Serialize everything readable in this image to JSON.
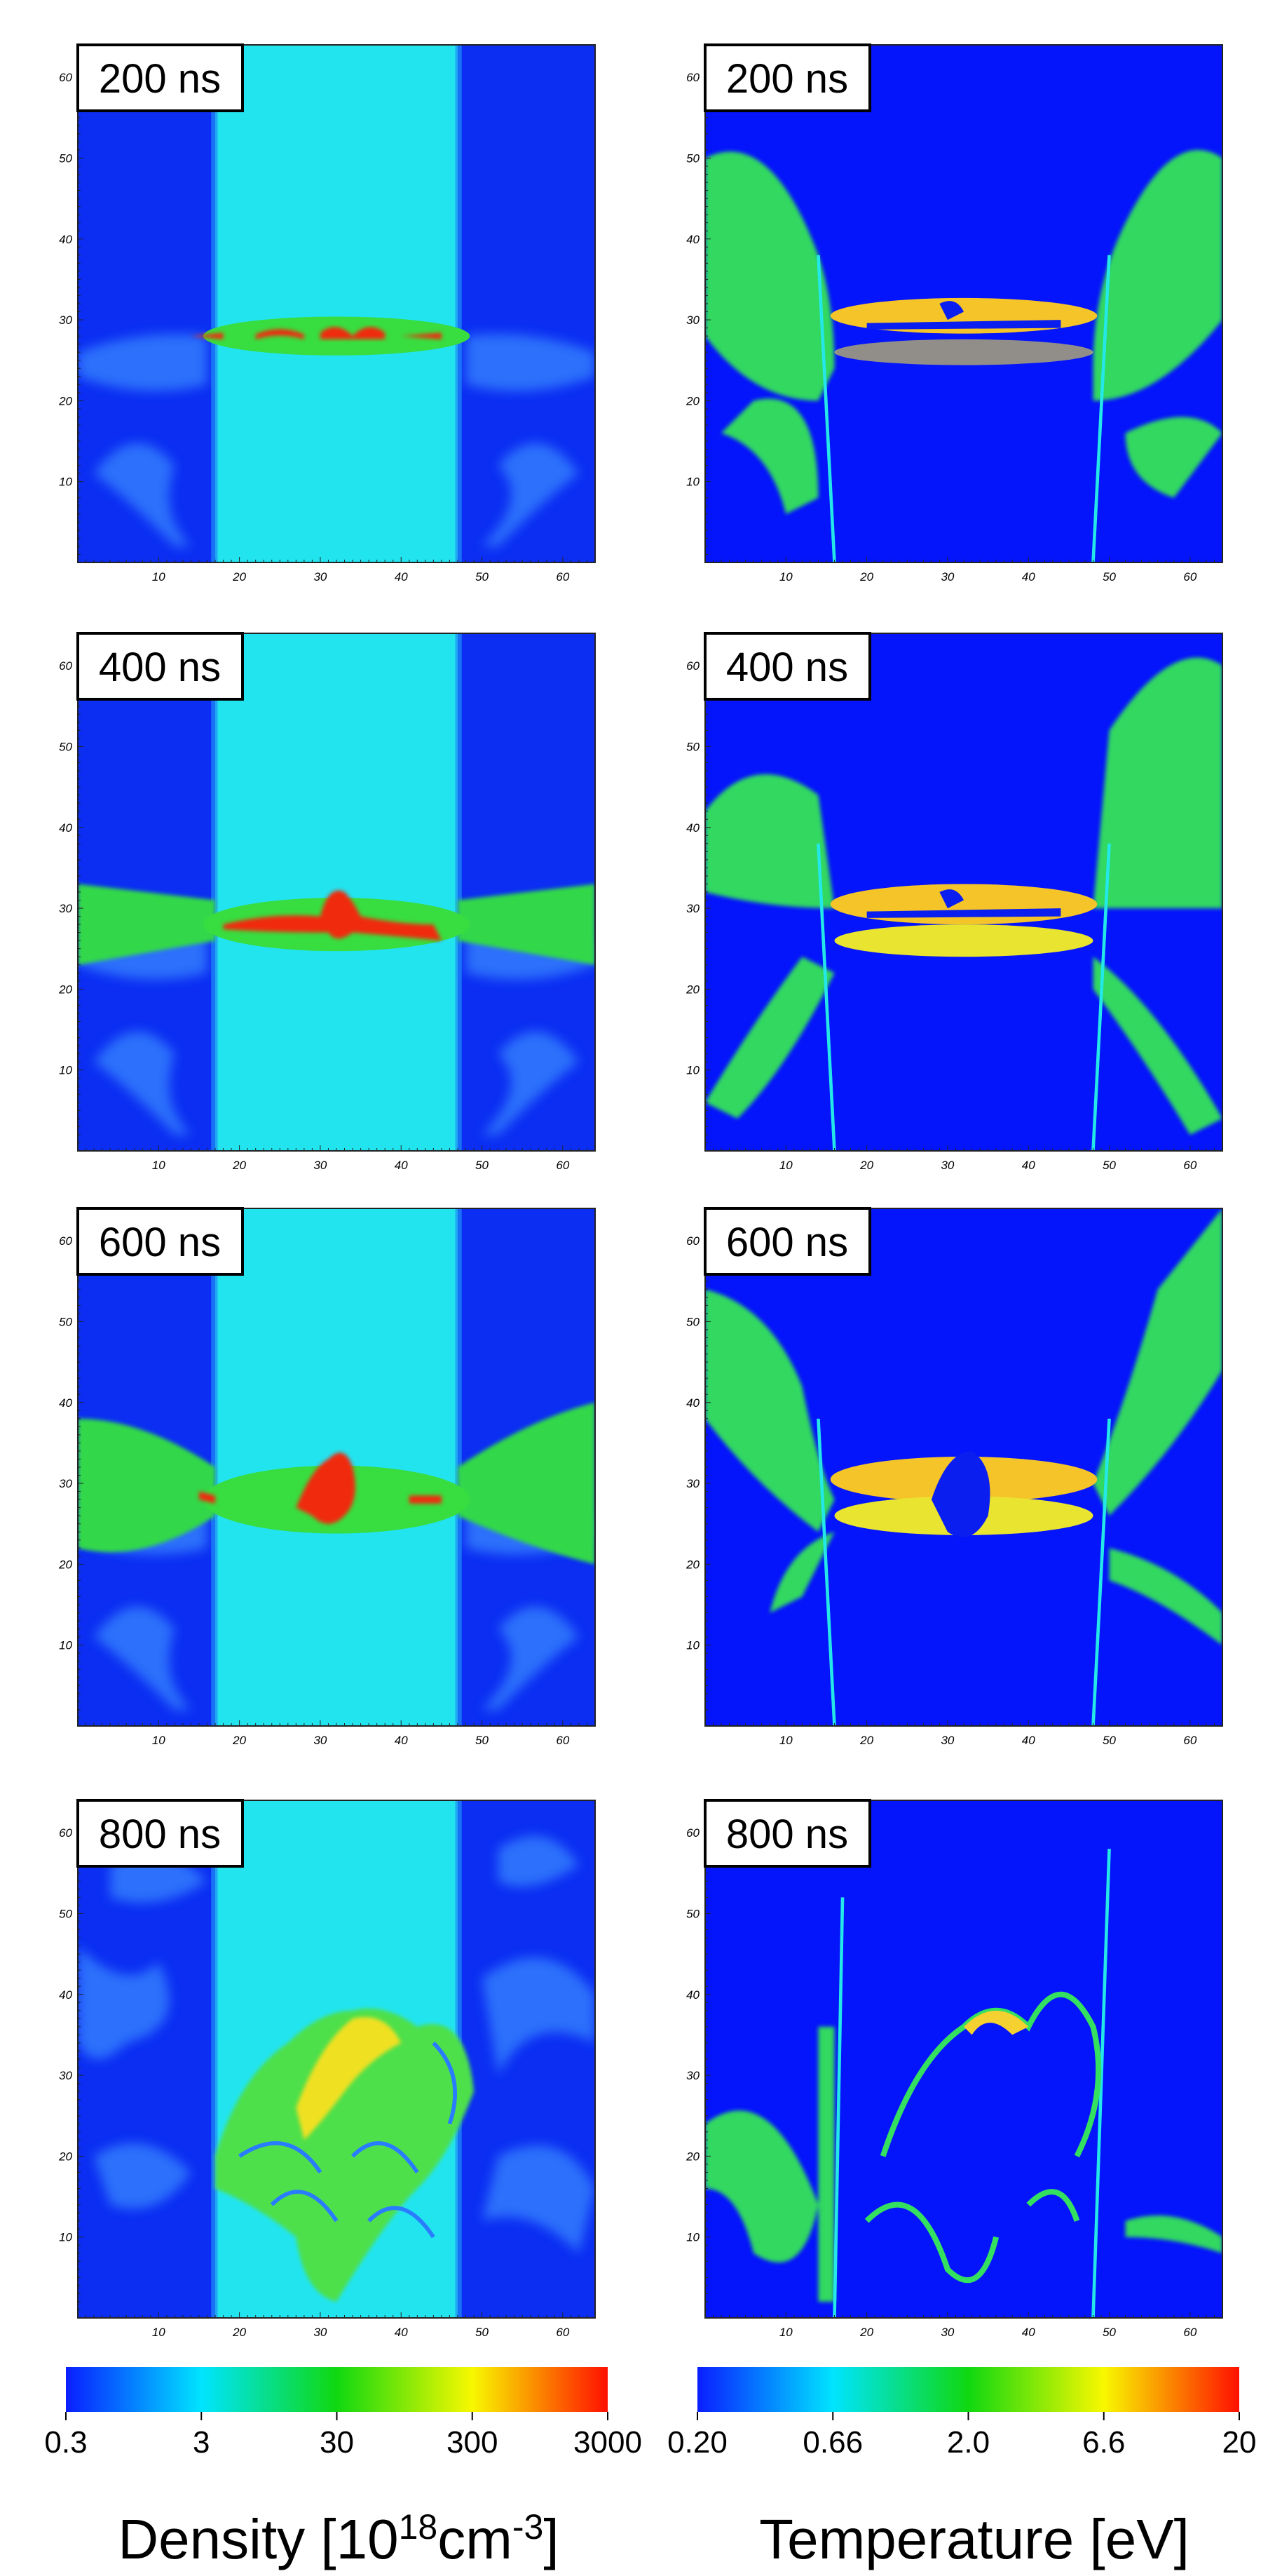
{
  "panels": [
    {
      "density_time": "200 ns",
      "temperature_time": "200 ns"
    },
    {
      "density_time": "400 ns",
      "temperature_time": "400 ns"
    },
    {
      "density_time": "600 ns",
      "temperature_time": "600 ns"
    },
    {
      "density_time": "800 ns",
      "temperature_time": "800 ns"
    }
  ],
  "axis_ticks": [
    "10",
    "20",
    "30",
    "40",
    "50",
    "60"
  ],
  "density_colorbar": {
    "ticks": [
      "0.3",
      "3",
      "30",
      "300",
      "3000"
    ],
    "label": {
      "pre": "Density [10",
      "exp1": "18",
      "unit": "cm",
      "exp2": "-3",
      "post": "]"
    }
  },
  "temperature_colorbar": {
    "ticks": [
      "0.20",
      "0.66",
      "2.0",
      "6.6",
      "20"
    ],
    "label": "Temperature [eV]"
  }
}
